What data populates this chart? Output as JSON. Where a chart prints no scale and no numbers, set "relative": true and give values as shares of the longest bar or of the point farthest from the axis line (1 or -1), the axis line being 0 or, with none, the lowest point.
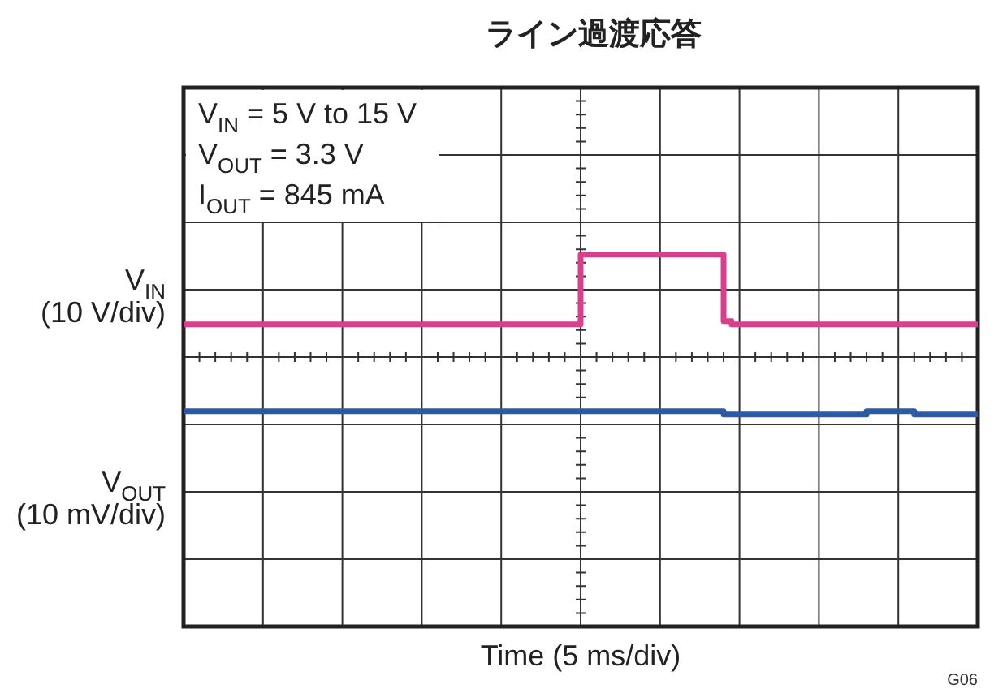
{
  "chart_data": {
    "type": "step",
    "title": "ライン過渡応答",
    "relative": true,
    "grid": true,
    "line_style": "solid",
    "categories": [
      null,
      null,
      null,
      null,
      null,
      null,
      null,
      null,
      null,
      null,
      null,
      null,
      null,
      null,
      null,
      null,
      null,
      null,
      null,
      null,
      null,
      null,
      null,
      null,
      null,
      null,
      null,
      null,
      null,
      null,
      null,
      null,
      null,
      null,
      null,
      null,
      null,
      null,
      null,
      null,
      null,
      null,
      null,
      null,
      null,
      null,
      null,
      null,
      null,
      null,
      null,
      null,
      null,
      null,
      null,
      null,
      null,
      null,
      null,
      null,
      null,
      null,
      null,
      null,
      null,
      null,
      null,
      null,
      null,
      null,
      null,
      null,
      null,
      null,
      null,
      null,
      null,
      null,
      null,
      null,
      null,
      null,
      null,
      null,
      null,
      null,
      null,
      null,
      null,
      null,
      null,
      null,
      null,
      null,
      null,
      null,
      null,
      null,
      null,
      null,
      null
    ],
    "series": [
      {
        "name": "V$_{IN}$\n(10 V/div)",
        "color": "#d6408c",
        "values": [
          0.32,
          0.32,
          0.32,
          0.32,
          0.32,
          0.32,
          0.32,
          0.32,
          0.32,
          0.32,
          0.32,
          0.32,
          0.32,
          0.32,
          0.32,
          0.32,
          0.32,
          0.32,
          0.32,
          0.32,
          0.32,
          0.32,
          0.32,
          0.32,
          0.32,
          0.32,
          0.32,
          0.32,
          0.32,
          0.32,
          0.32,
          0.32,
          0.32,
          0.32,
          0.32,
          0.32,
          0.32,
          0.32,
          0.32,
          0.32,
          0.32,
          0.32,
          0.32,
          0.32,
          0.32,
          0.32,
          0.32,
          0.32,
          0.32,
          0.32,
          1,
          1,
          1,
          1,
          1,
          1,
          1,
          1,
          1,
          1,
          1,
          1,
          1,
          1,
          1,
          1,
          1,
          1,
          0.35,
          0.32,
          0.32,
          0.32,
          0.32,
          0.32,
          0.32,
          0.32,
          0.32,
          0.32,
          0.32,
          0.32,
          0.32,
          0.32,
          0.32,
          0.32,
          0.32,
          0.32,
          0.32,
          0.32,
          0.32,
          0.32,
          0.32,
          0.32,
          0.32,
          0.32,
          0.32,
          0.32,
          0.32,
          0.32,
          0.32,
          0.32,
          0.32
        ]
      },
      {
        "name": "V$_{OUT}$\n(10 mV/div)",
        "color": "#2b5aa6",
        "values": [
          -0.53,
          -0.53,
          -0.53,
          -0.53,
          -0.53,
          -0.53,
          -0.53,
          -0.53,
          -0.53,
          -0.53,
          -0.53,
          -0.53,
          -0.53,
          -0.53,
          -0.53,
          -0.53,
          -0.53,
          -0.53,
          -0.53,
          -0.53,
          -0.53,
          -0.53,
          -0.53,
          -0.53,
          -0.53,
          -0.53,
          -0.53,
          -0.53,
          -0.53,
          -0.53,
          -0.53,
          -0.53,
          -0.53,
          -0.53,
          -0.53,
          -0.53,
          -0.53,
          -0.53,
          -0.53,
          -0.53,
          -0.53,
          -0.53,
          -0.53,
          -0.53,
          -0.53,
          -0.53,
          -0.53,
          -0.53,
          -0.53,
          -0.53,
          -0.53,
          -0.53,
          -0.53,
          -0.53,
          -0.53,
          -0.53,
          -0.53,
          -0.53,
          -0.53,
          -0.53,
          -0.53,
          -0.53,
          -0.53,
          -0.53,
          -0.53,
          -0.53,
          -0.53,
          -0.53,
          -0.56,
          -0.56,
          -0.56,
          -0.56,
          -0.56,
          -0.56,
          -0.56,
          -0.56,
          -0.56,
          -0.56,
          -0.56,
          -0.56,
          -0.56,
          -0.56,
          -0.56,
          -0.56,
          -0.56,
          -0.56,
          -0.53,
          -0.53,
          -0.53,
          -0.53,
          -0.53,
          -0.53,
          -0.56,
          -0.56,
          -0.56,
          -0.56,
          -0.56,
          -0.56,
          -0.56,
          -0.56,
          -0.56
        ]
      }
    ],
    "annotations": [
      "V$_{IN}$ = 5 V to 15 V",
      "V$_{OUT}$ = 3.3 V",
      "I$_{OUT}$ = 845 mA",
      "Time (5 ms/div)",
      "G06"
    ]
  }
}
